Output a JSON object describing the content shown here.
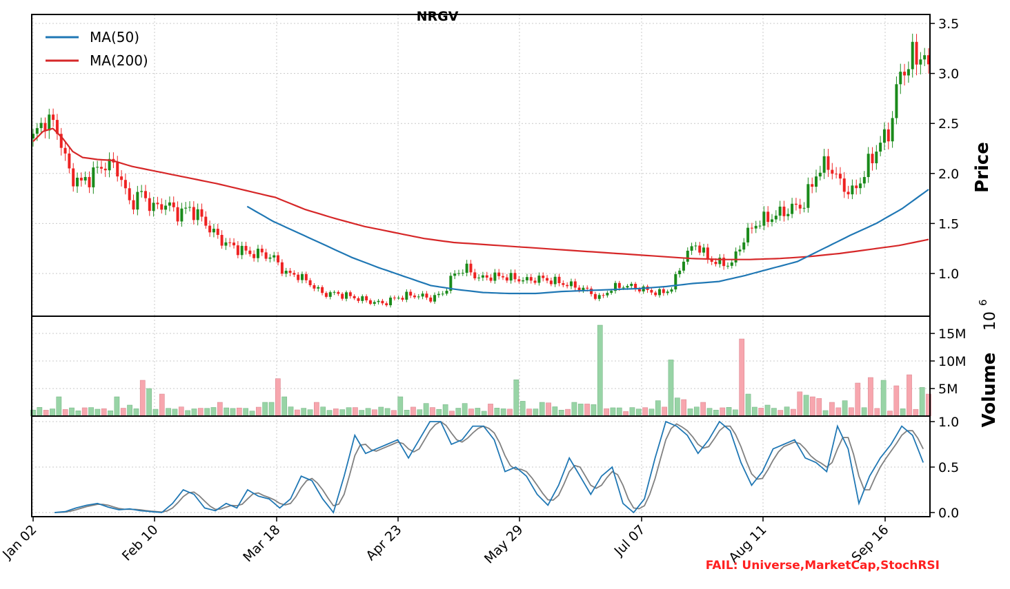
{
  "chart_data": {
    "type": "candlestick",
    "title": "NRGV",
    "x_tick_labels": [
      "Jan 02",
      "Feb 10",
      "Mar 18",
      "Apr 23",
      "May 29",
      "Jul 07",
      "Aug 11",
      "Sep 16"
    ],
    "price_panel": {
      "ylabel": "Price",
      "ylim": [
        0.6,
        3.6
      ],
      "yticks": [
        "1.0",
        "1.5",
        "2.0",
        "2.5",
        "3.0",
        "3.5"
      ],
      "legend": [
        {
          "name": "MA(50)",
          "color": "#1f77b4"
        },
        {
          "name": "MA(200)",
          "color": "#d62728"
        }
      ],
      "legend_position": "top-left",
      "up_color": "#1a8a1a",
      "down_color": "#ee2222",
      "close_anchors": [
        [
          0,
          2.35
        ],
        [
          3,
          2.55
        ],
        [
          6,
          2.45
        ],
        [
          9,
          2.0
        ],
        [
          12,
          1.9
        ],
        [
          15,
          2.0
        ],
        [
          18,
          2.1
        ],
        [
          21,
          2.05
        ],
        [
          24,
          1.7
        ],
        [
          27,
          1.8
        ],
        [
          30,
          1.65
        ],
        [
          33,
          1.7
        ],
        [
          36,
          1.6
        ],
        [
          39,
          1.65
        ],
        [
          42,
          1.55
        ],
        [
          45,
          1.4
        ],
        [
          48,
          1.3
        ],
        [
          51,
          1.25
        ],
        [
          54,
          1.2
        ],
        [
          57,
          1.2
        ],
        [
          60,
          1.15
        ],
        [
          63,
          1.0
        ],
        [
          66,
          0.98
        ],
        [
          69,
          0.9
        ],
        [
          72,
          0.8
        ],
        [
          75,
          0.8
        ],
        [
          78,
          0.78
        ],
        [
          81,
          0.75
        ],
        [
          84,
          0.72
        ],
        [
          87,
          0.7
        ],
        [
          90,
          0.75
        ],
        [
          93,
          0.78
        ],
        [
          96,
          0.78
        ],
        [
          99,
          0.75
        ],
        [
          102,
          0.8
        ],
        [
          105,
          1.0
        ],
        [
          108,
          1.05
        ],
        [
          111,
          0.95
        ],
        [
          114,
          0.97
        ],
        [
          117,
          0.97
        ],
        [
          120,
          0.95
        ],
        [
          123,
          0.93
        ],
        [
          126,
          0.95
        ],
        [
          129,
          0.93
        ],
        [
          132,
          0.9
        ],
        [
          135,
          0.87
        ],
        [
          138,
          0.83
        ],
        [
          141,
          0.75
        ],
        [
          144,
          0.85
        ],
        [
          147,
          0.88
        ],
        [
          150,
          0.86
        ],
        [
          153,
          0.83
        ],
        [
          156,
          0.8
        ],
        [
          159,
          0.85
        ],
        [
          162,
          1.15
        ],
        [
          165,
          1.3
        ],
        [
          168,
          1.15
        ],
        [
          171,
          1.1
        ],
        [
          174,
          1.1
        ],
        [
          177,
          1.35
        ],
        [
          180,
          1.5
        ],
        [
          183,
          1.55
        ],
        [
          186,
          1.6
        ],
        [
          189,
          1.65
        ],
        [
          192,
          1.7
        ],
        [
          195,
          2.0
        ],
        [
          198,
          2.1
        ],
        [
          201,
          1.9
        ],
        [
          204,
          1.8
        ],
        [
          207,
          2.0
        ],
        [
          210,
          2.25
        ],
        [
          213,
          2.4
        ],
        [
          216,
          3.0
        ],
        [
          219,
          3.15
        ],
        [
          222,
          3.2
        ],
        [
          223,
          2.95
        ]
      ],
      "ma50_anchors": [
        [
          49,
          1.67
        ],
        [
          55,
          1.52
        ],
        [
          61,
          1.4
        ],
        [
          67,
          1.28
        ],
        [
          73,
          1.16
        ],
        [
          79,
          1.06
        ],
        [
          85,
          0.97
        ],
        [
          91,
          0.88
        ],
        [
          97,
          0.84
        ],
        [
          103,
          0.81
        ],
        [
          109,
          0.8
        ],
        [
          115,
          0.8
        ],
        [
          121,
          0.82
        ],
        [
          127,
          0.83
        ],
        [
          133,
          0.84
        ],
        [
          139,
          0.85
        ],
        [
          145,
          0.87
        ],
        [
          151,
          0.9
        ],
        [
          157,
          0.92
        ],
        [
          163,
          0.98
        ],
        [
          169,
          1.05
        ],
        [
          175,
          1.12
        ],
        [
          181,
          1.25
        ],
        [
          187,
          1.38
        ],
        [
          193,
          1.5
        ],
        [
          199,
          1.65
        ],
        [
          205,
          1.84
        ]
      ],
      "ma200_anchors": [
        [
          0,
          2.32
        ],
        [
          2,
          2.42
        ],
        [
          4,
          2.45
        ],
        [
          6,
          2.35
        ],
        [
          8,
          2.22
        ],
        [
          10,
          2.16
        ],
        [
          13,
          2.14
        ],
        [
          16,
          2.13
        ],
        [
          20,
          2.07
        ],
        [
          25,
          2.02
        ],
        [
          31,
          1.96
        ],
        [
          37,
          1.9
        ],
        [
          43,
          1.83
        ],
        [
          49,
          1.76
        ],
        [
          55,
          1.64
        ],
        [
          61,
          1.55
        ],
        [
          67,
          1.47
        ],
        [
          73,
          1.41
        ],
        [
          79,
          1.35
        ],
        [
          85,
          1.31
        ],
        [
          91,
          1.29
        ],
        [
          97,
          1.27
        ],
        [
          103,
          1.25
        ],
        [
          109,
          1.23
        ],
        [
          115,
          1.21
        ],
        [
          121,
          1.19
        ],
        [
          127,
          1.17
        ],
        [
          133,
          1.15
        ],
        [
          139,
          1.14
        ],
        [
          145,
          1.14
        ],
        [
          151,
          1.15
        ],
        [
          157,
          1.17
        ],
        [
          163,
          1.2
        ],
        [
          169,
          1.24
        ],
        [
          175,
          1.28
        ],
        [
          181,
          1.34
        ]
      ]
    },
    "volume_panel": {
      "ylabel": "Volume",
      "multiplier_label": "10",
      "multiplier_exponent": "6",
      "ylim": [
        0,
        18
      ],
      "yticks": [
        "5M",
        "10M",
        "15M"
      ],
      "up_color": "#98d4a6",
      "down_color": "#f7a6ae",
      "spikes": [
        [
          4,
          3.5
        ],
        [
          13,
          3.5
        ],
        [
          15,
          2.0
        ],
        [
          17,
          6.5
        ],
        [
          18,
          5.0
        ],
        [
          20,
          4.0
        ],
        [
          29,
          2.5
        ],
        [
          36,
          2.5
        ],
        [
          37,
          2.5
        ],
        [
          38,
          6.8
        ],
        [
          39,
          3.5
        ],
        [
          44,
          2.5
        ],
        [
          57,
          3.5
        ],
        [
          61,
          2.3
        ],
        [
          64,
          2.1
        ],
        [
          67,
          2.3
        ],
        [
          71,
          2.2
        ],
        [
          75,
          6.6
        ],
        [
          76,
          2.7
        ],
        [
          79,
          2.5
        ],
        [
          80,
          2.4
        ],
        [
          84,
          2.5
        ],
        [
          85,
          2.2
        ],
        [
          86,
          2.2
        ],
        [
          87,
          2.1
        ],
        [
          88,
          16.5
        ],
        [
          91,
          1.5
        ],
        [
          97,
          2.8
        ],
        [
          99,
          10.2
        ],
        [
          100,
          3.3
        ],
        [
          101,
          3.0
        ],
        [
          104,
          2.5
        ],
        [
          110,
          14.0
        ],
        [
          111,
          4.0
        ],
        [
          114,
          2.0
        ],
        [
          119,
          4.4
        ],
        [
          120,
          3.8
        ],
        [
          121,
          3.5
        ],
        [
          122,
          3.2
        ],
        [
          124,
          2.5
        ],
        [
          126,
          2.8
        ],
        [
          128,
          6.0
        ],
        [
          130,
          7.0
        ],
        [
          132,
          6.5
        ],
        [
          134,
          5.5
        ],
        [
          136,
          7.5
        ],
        [
          138,
          5.2
        ],
        [
          139,
          4.0
        ]
      ]
    },
    "stochrsi_panel": {
      "ylim": [
        -0.05,
        1.05
      ],
      "yticks": [
        "0.0",
        "0.5",
        "1.0"
      ],
      "k_color": "#1f77b4",
      "d_color": "#808080",
      "k_anchors": [
        [
          4,
          0.0
        ],
        [
          6,
          0.01
        ],
        [
          8,
          0.05
        ],
        [
          10,
          0.08
        ],
        [
          12,
          0.1
        ],
        [
          14,
          0.06
        ],
        [
          16,
          0.03
        ],
        [
          18,
          0.04
        ],
        [
          20,
          0.02
        ],
        [
          22,
          0.01
        ],
        [
          24,
          0.0
        ],
        [
          26,
          0.1
        ],
        [
          28,
          0.25
        ],
        [
          30,
          0.2
        ],
        [
          32,
          0.05
        ],
        [
          34,
          0.02
        ],
        [
          36,
          0.1
        ],
        [
          38,
          0.05
        ],
        [
          40,
          0.25
        ],
        [
          42,
          0.18
        ],
        [
          44,
          0.15
        ],
        [
          46,
          0.05
        ],
        [
          48,
          0.15
        ],
        [
          50,
          0.4
        ],
        [
          52,
          0.35
        ],
        [
          54,
          0.15
        ],
        [
          56,
          0.0
        ],
        [
          58,
          0.4
        ],
        [
          60,
          0.85
        ],
        [
          62,
          0.65
        ],
        [
          64,
          0.7
        ],
        [
          66,
          0.75
        ],
        [
          68,
          0.8
        ],
        [
          70,
          0.6
        ],
        [
          72,
          0.8
        ],
        [
          74,
          1.0
        ],
        [
          76,
          1.0
        ],
        [
          78,
          0.75
        ],
        [
          80,
          0.8
        ],
        [
          82,
          0.95
        ],
        [
          84,
          0.95
        ],
        [
          86,
          0.8
        ],
        [
          88,
          0.45
        ],
        [
          90,
          0.5
        ],
        [
          92,
          0.4
        ],
        [
          94,
          0.2
        ],
        [
          96,
          0.08
        ],
        [
          98,
          0.3
        ],
        [
          100,
          0.6
        ],
        [
          102,
          0.4
        ],
        [
          104,
          0.2
        ],
        [
          106,
          0.4
        ],
        [
          108,
          0.5
        ],
        [
          110,
          0.1
        ],
        [
          112,
          0.0
        ],
        [
          114,
          0.15
        ],
        [
          116,
          0.6
        ],
        [
          118,
          1.0
        ],
        [
          120,
          0.95
        ],
        [
          122,
          0.85
        ],
        [
          124,
          0.65
        ],
        [
          126,
          0.8
        ],
        [
          128,
          1.0
        ],
        [
          130,
          0.9
        ],
        [
          132,
          0.55
        ],
        [
          134,
          0.3
        ],
        [
          136,
          0.45
        ],
        [
          138,
          0.7
        ],
        [
          140,
          0.75
        ],
        [
          142,
          0.8
        ],
        [
          144,
          0.6
        ],
        [
          146,
          0.55
        ],
        [
          148,
          0.45
        ],
        [
          150,
          0.95
        ],
        [
          152,
          0.7
        ],
        [
          154,
          0.1
        ],
        [
          156,
          0.4
        ],
        [
          158,
          0.6
        ],
        [
          160,
          0.75
        ],
        [
          162,
          0.95
        ],
        [
          164,
          0.85
        ],
        [
          166,
          0.55
        ]
      ]
    },
    "annotation": "FAIL: Universe,MarketCap,StochRSI"
  }
}
